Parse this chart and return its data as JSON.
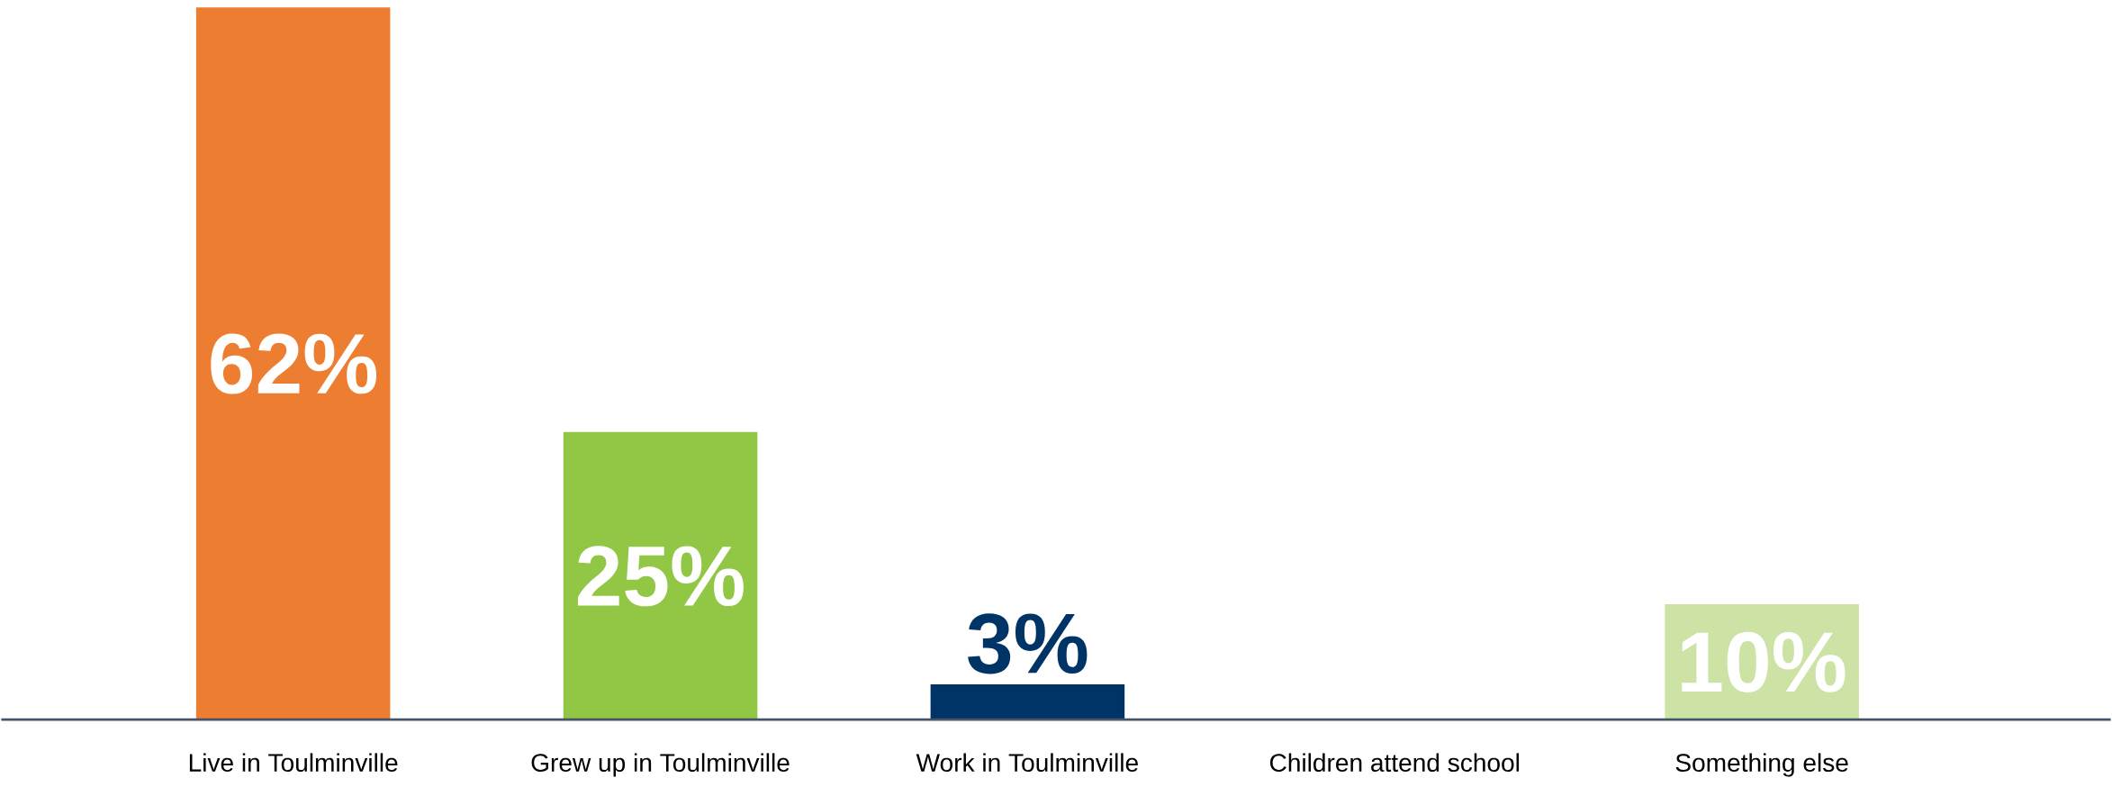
{
  "chart_data": {
    "type": "bar",
    "categories": [
      "Live in Toulminville",
      "Grew up in Toulminville",
      "Work in Toulminville",
      "Children attend school",
      "Something else"
    ],
    "values": [
      62,
      25,
      3,
      null,
      10
    ],
    "colors": [
      "#ed7d31",
      "#92c746",
      "#003366",
      "#cccccc",
      "#cce3a5"
    ],
    "value_labels": [
      "62%",
      "25%",
      "3%",
      null,
      "10%"
    ]
  }
}
